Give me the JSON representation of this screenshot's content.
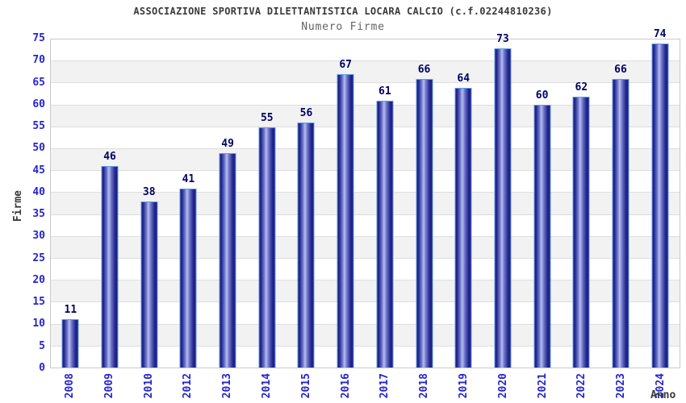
{
  "chart_data": {
    "type": "bar",
    "title": "ASSOCIAZIONE SPORTIVA DILETTANTISTICA LOCARA CALCIO (c.f.02244810236)",
    "subtitle": "Numero Firme",
    "xlabel": "Anno",
    "ylabel": "Firme",
    "categories": [
      "2008",
      "2009",
      "2010",
      "2012",
      "2013",
      "2014",
      "2015",
      "2016",
      "2017",
      "2018",
      "2019",
      "2020",
      "2021",
      "2022",
      "2023",
      "2024"
    ],
    "values": [
      11,
      46,
      38,
      41,
      49,
      55,
      56,
      67,
      61,
      66,
      64,
      73,
      60,
      62,
      66,
      74
    ],
    "ylim": [
      0,
      75
    ],
    "ytick_step": 5,
    "grid": "horizontal-stripes",
    "legend": "none",
    "colors": {
      "bar_dark": "#1c1c80",
      "bar_light": "#b6beef",
      "bar_outline": "#5c9ce6",
      "tick_label": "#2525cc",
      "value_label": "#000066",
      "title": "#3a3a3a",
      "subtitle": "#636363",
      "axis_label": "#3a3a3a",
      "stripe": "#f2f2f2",
      "gridline": "#dedede",
      "plot_border": "#c9c9c9",
      "background": "#ffffff"
    }
  }
}
